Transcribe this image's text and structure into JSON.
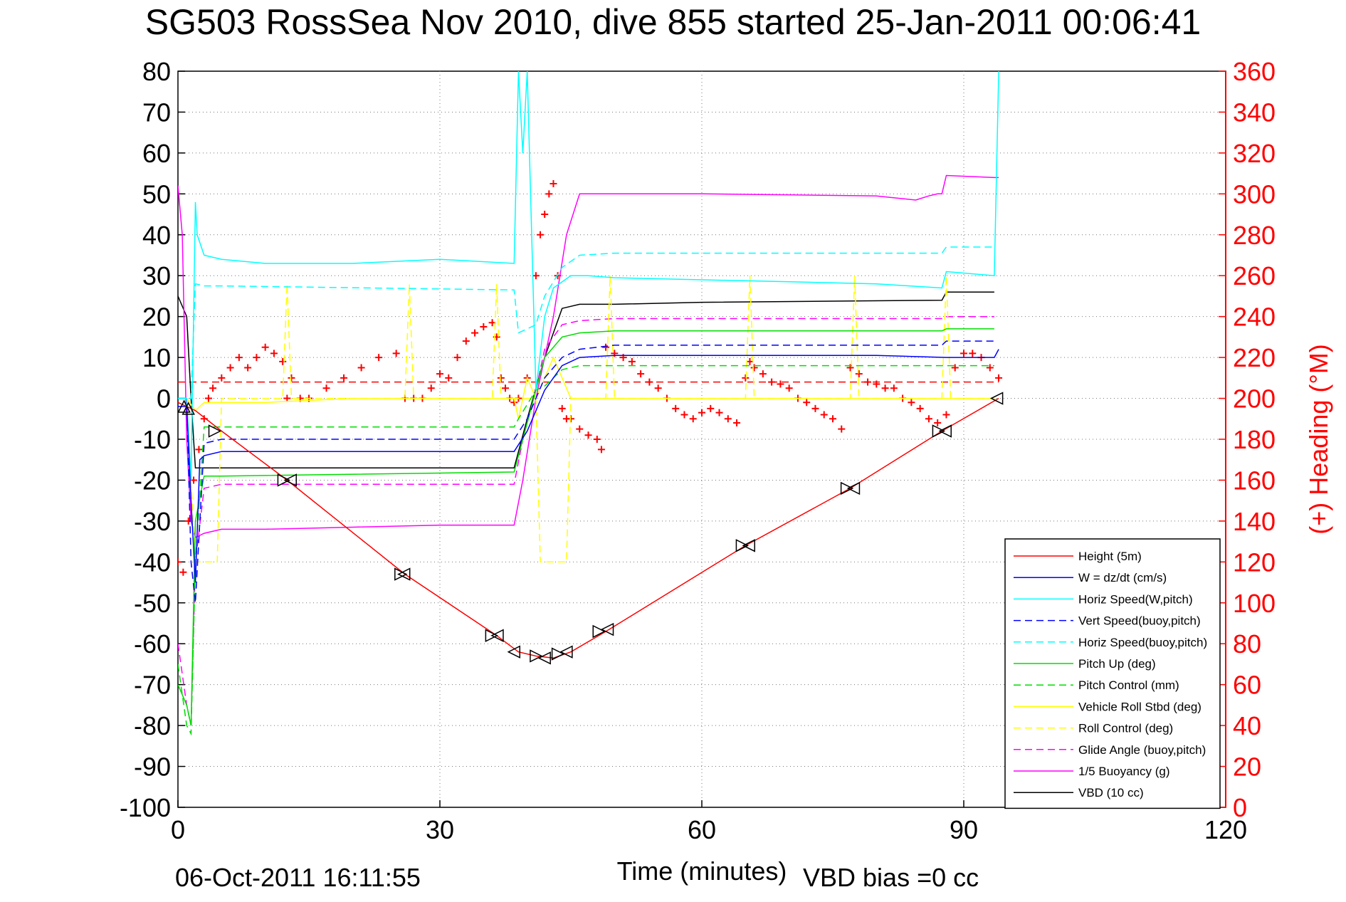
{
  "chart_data": {
    "type": "line",
    "title": "SG503 RossSea Nov 2010, dive 855 started 25-Jan-2011 00:06:41",
    "xlabel": "Time (minutes)",
    "ylabel": "",
    "y2label": "(+) Heading (°M)",
    "xlim": [
      0,
      120
    ],
    "ylim": [
      -100,
      80
    ],
    "y2lim": [
      0,
      360
    ],
    "xticks": [
      "0",
      "30",
      "60",
      "90",
      "120"
    ],
    "yticks": [
      "80",
      "70",
      "60",
      "50",
      "40",
      "30",
      "20",
      "10",
      "0",
      "-10",
      "-20",
      "-30",
      "-40",
      "-50",
      "-60",
      "-70",
      "-80",
      "-90",
      "-100"
    ],
    "y2ticks": [
      "360",
      "340",
      "320",
      "300",
      "280",
      "260",
      "240",
      "220",
      "200",
      "180",
      "160",
      "140",
      "120",
      "100",
      "80",
      "60",
      "40",
      "20",
      "0"
    ],
    "grid": true,
    "legend_position": "bottom-right",
    "footer_left": "06-Oct-2011 16:11:55",
    "footer_right": "VBD bias =0 cc",
    "series": [
      {
        "name": "Height (5m)",
        "color": "#ff0000",
        "dash": "solid",
        "x": [
          0,
          1,
          2,
          5,
          12.5,
          26,
          36.5,
          39,
          41,
          43,
          45,
          49,
          65,
          77,
          87.5,
          94
        ],
        "y": [
          -1,
          -2,
          -3,
          -8,
          -20,
          -43,
          -58,
          -62,
          -63,
          -63.5,
          -62,
          -57,
          -36,
          -22,
          -8,
          0
        ]
      },
      {
        "name": "W = dz/dt (cm/s)",
        "color": "#0000ff",
        "dash": "solid",
        "x": [
          0,
          1,
          1.5,
          2,
          2.5,
          3,
          5,
          10,
          20,
          30,
          38.5,
          40,
          42,
          44,
          46,
          50,
          60,
          70,
          80,
          88,
          93.5,
          94
        ],
        "y": [
          -2,
          -2,
          -25,
          -45,
          -15,
          -14,
          -13,
          -13,
          -13,
          -13,
          -13,
          -8,
          2,
          8,
          10,
          10.5,
          10.5,
          10.5,
          10.5,
          10,
          10,
          12
        ]
      },
      {
        "name": "Horiz Speed(W,pitch)",
        "color": "#00ffff",
        "dash": "solid",
        "x": [
          0,
          1,
          1.5,
          2,
          2.2,
          3,
          5,
          10,
          20,
          30,
          38.5,
          39,
          39.5,
          40,
          41,
          42,
          43,
          45,
          47,
          50,
          60,
          70,
          80,
          87.5,
          88,
          93.5,
          94
        ],
        "y": [
          0,
          0,
          -20,
          48,
          40,
          35,
          34,
          33,
          33,
          34,
          33,
          80,
          60,
          80,
          2,
          20,
          27,
          30,
          30,
          29.5,
          29,
          28.5,
          28,
          27,
          31,
          30,
          80
        ]
      },
      {
        "name": "Vert Speed(buoy,pitch)",
        "color": "#0000ff",
        "dash": "dashed",
        "x": [
          0,
          1,
          1.5,
          2,
          3,
          5,
          38.5,
          40,
          42,
          44,
          46,
          50,
          87.5,
          88,
          93.5
        ],
        "y": [
          0,
          0,
          -40,
          -50,
          -11,
          -10,
          -10,
          -5,
          5,
          10,
          12,
          13,
          13,
          14,
          14
        ]
      },
      {
        "name": "Horiz Speed(buoy,pitch)",
        "color": "#00ffff",
        "dash": "dashed",
        "x": [
          0,
          1,
          1.5,
          2,
          3,
          5,
          38.5,
          39,
          41,
          42,
          44,
          46,
          50,
          87.5,
          88,
          93.5
        ],
        "y": [
          0,
          0,
          0,
          28,
          27.5,
          27.5,
          26.5,
          16,
          18,
          25,
          32,
          35,
          35.5,
          35.5,
          37,
          37
        ]
      },
      {
        "name": "Pitch Up (deg)",
        "color": "#00dd00",
        "dash": "solid",
        "x": [
          0,
          1,
          1.5,
          2,
          3,
          5,
          38.5,
          39.5,
          41,
          42,
          44,
          46,
          50,
          87.5,
          88,
          93.5
        ],
        "y": [
          -70,
          -75,
          -80,
          -30,
          -19,
          -19,
          -18,
          -10,
          2,
          10,
          15,
          16,
          16.5,
          16.5,
          17,
          17
        ]
      },
      {
        "name": "Pitch Control (mm)",
        "color": "#00dd00",
        "dash": "dashed",
        "x": [
          0,
          1,
          1.5,
          2,
          3,
          38.5,
          39,
          41,
          42,
          44,
          46,
          50,
          87.5,
          88,
          93.5
        ],
        "y": [
          -65,
          -80,
          -82,
          -40,
          -7,
          -7,
          -5,
          2,
          3,
          7,
          8,
          8,
          8,
          8,
          8
        ]
      },
      {
        "name": "Vehicle Roll Stbd (deg)",
        "color": "#ffff00",
        "dash": "solid",
        "x": [
          0,
          1,
          2,
          3,
          10,
          20,
          30,
          38.5,
          39,
          40,
          41,
          43,
          45,
          50,
          60,
          70,
          80,
          90,
          93.5
        ],
        "y": [
          0,
          0,
          -3,
          -1,
          -1,
          0,
          0,
          0,
          -5,
          5,
          0,
          10,
          0,
          0,
          0,
          0,
          0,
          0,
          0
        ]
      },
      {
        "name": "Roll Control (deg)",
        "color": "#ffff00",
        "dash": "dashed",
        "x": [
          0,
          1,
          2,
          4.5,
          5,
          12,
          12.5,
          13,
          26,
          26.5,
          27,
          36,
          36.5,
          37,
          41,
          41.5,
          44.5,
          45,
          49,
          49.5,
          50,
          65,
          65.5,
          66,
          77,
          77.5,
          78,
          87.5,
          88,
          88.5,
          93.5
        ],
        "y": [
          0,
          0,
          -40,
          -40,
          0,
          0,
          28,
          0,
          0,
          28,
          0,
          0,
          28,
          0,
          0,
          -40,
          -40,
          0,
          0,
          30,
          0,
          0,
          30,
          0,
          0,
          30,
          0,
          0,
          30,
          0,
          0
        ]
      },
      {
        "name": "Glide Angle (buoy,pitch)",
        "color": "#ff00ff",
        "dash": "dashed",
        "x": [
          0,
          1,
          1.5,
          2,
          3,
          5,
          38.5,
          39.5,
          41,
          42,
          44,
          46,
          50,
          87.5,
          88,
          93.5
        ],
        "y": [
          -60,
          -75,
          -80,
          -40,
          -22,
          -21,
          -21,
          -10,
          2,
          12,
          18,
          19,
          19.5,
          19.5,
          20,
          20
        ]
      },
      {
        "name": "1/5 Buoyancy (g)",
        "color": "#ff00ff",
        "dash": "solid",
        "x": [
          0,
          0.5,
          1,
          1.5,
          2,
          3,
          5,
          10,
          20,
          30,
          38.5,
          39.5,
          41,
          43,
          44.5,
          46,
          60,
          80,
          84.5,
          86,
          87,
          87.5,
          88,
          93.5,
          94
        ],
        "y": [
          52,
          40,
          -10,
          -30,
          -34,
          -33,
          -32,
          -32,
          -31.5,
          -31,
          -31,
          -20,
          0,
          20,
          40,
          50,
          50,
          49.5,
          48.5,
          49.5,
          50,
          50,
          54.5,
          54,
          54
        ]
      },
      {
        "name": "VBD (10 cc)",
        "color": "#000000",
        "dash": "solid",
        "x": [
          0,
          1,
          1.5,
          2,
          3,
          5,
          38.5,
          40,
          42,
          44,
          46,
          50,
          60,
          87.5,
          88,
          93.5
        ],
        "y": [
          25,
          20,
          0,
          -17,
          -17,
          -17,
          -17,
          -5,
          10,
          22,
          23,
          23,
          23.5,
          24,
          26,
          26
        ]
      },
      {
        "name": "",
        "color": "#ff0000",
        "dash": "dashed",
        "x": [
          0,
          94
        ],
        "y": [
          4,
          4
        ]
      }
    ],
    "heading": {
      "label": "(+) Heading (°M)",
      "color": "#ff0000",
      "marker": "+",
      "x": [
        0,
        0.6,
        1.2,
        1.8,
        2.4,
        3,
        3.5,
        4,
        5,
        6,
        7,
        8,
        9,
        10,
        11,
        12,
        12.5,
        13,
        14,
        15,
        17,
        19,
        21,
        23,
        25,
        26,
        27,
        28,
        29,
        30,
        31,
        32,
        33,
        34,
        35,
        36,
        36.5,
        37,
        37.5,
        38,
        38.5,
        39,
        40,
        41,
        41.5,
        42,
        42.5,
        43,
        43.5,
        44,
        44.5,
        45,
        46,
        47,
        48,
        48.5,
        49,
        50,
        51,
        52,
        53,
        54,
        55,
        56,
        57,
        58,
        59,
        60,
        61,
        62,
        63,
        64,
        65,
        65.5,
        66,
        67,
        68,
        69,
        70,
        71,
        72,
        73,
        74,
        75,
        76,
        77,
        78,
        79,
        80,
        81,
        82,
        83,
        84,
        85,
        86,
        87,
        88,
        89,
        90,
        91,
        92,
        93,
        94
      ],
      "y": [
        120,
        115,
        140,
        160,
        175,
        190,
        200,
        205,
        210,
        215,
        220,
        215,
        220,
        225,
        222,
        218,
        200,
        210,
        200,
        200,
        205,
        210,
        215,
        220,
        222,
        200,
        200,
        200,
        205,
        212,
        210,
        220,
        228,
        232,
        235,
        237,
        230,
        210,
        205,
        200,
        198,
        200,
        210,
        260,
        280,
        290,
        300,
        305,
        260,
        195,
        190,
        190,
        185,
        182,
        180,
        175,
        225,
        222,
        220,
        218,
        212,
        208,
        205,
        200,
        195,
        192,
        190,
        193,
        195,
        193,
        190,
        188,
        210,
        218,
        215,
        212,
        208,
        207,
        205,
        200,
        198,
        195,
        192,
        190,
        185,
        215,
        212,
        208,
        207,
        205,
        205,
        200,
        198,
        195,
        190,
        188,
        192,
        215,
        222,
        222,
        220,
        215,
        210
      ]
    },
    "position_markers": {
      "x": [
        0.7,
        1.2,
        4.2,
        12.1,
        12.9,
        25.5,
        25.9,
        35.9,
        36.6,
        38.5,
        41,
        42,
        43.5,
        44.5,
        48.2,
        49.2,
        64.6,
        65.4,
        76.6,
        77.4,
        87.1,
        87.9,
        93.8
      ],
      "y": [
        -2,
        -2.5,
        -8,
        -20,
        -20,
        -43,
        -43,
        -58,
        -58,
        -62,
        -63,
        -63.5,
        -62.5,
        -62,
        -57,
        -56.5,
        -36,
        -36,
        -22,
        -22,
        -8,
        -8,
        0
      ],
      "dir": [
        "up",
        "up",
        "right",
        "right",
        "left",
        "right",
        "left",
        "right",
        "left",
        "left",
        "right",
        "left",
        "right",
        "left",
        "right",
        "left",
        "right",
        "left",
        "right",
        "left",
        "right",
        "left",
        "left"
      ]
    }
  }
}
